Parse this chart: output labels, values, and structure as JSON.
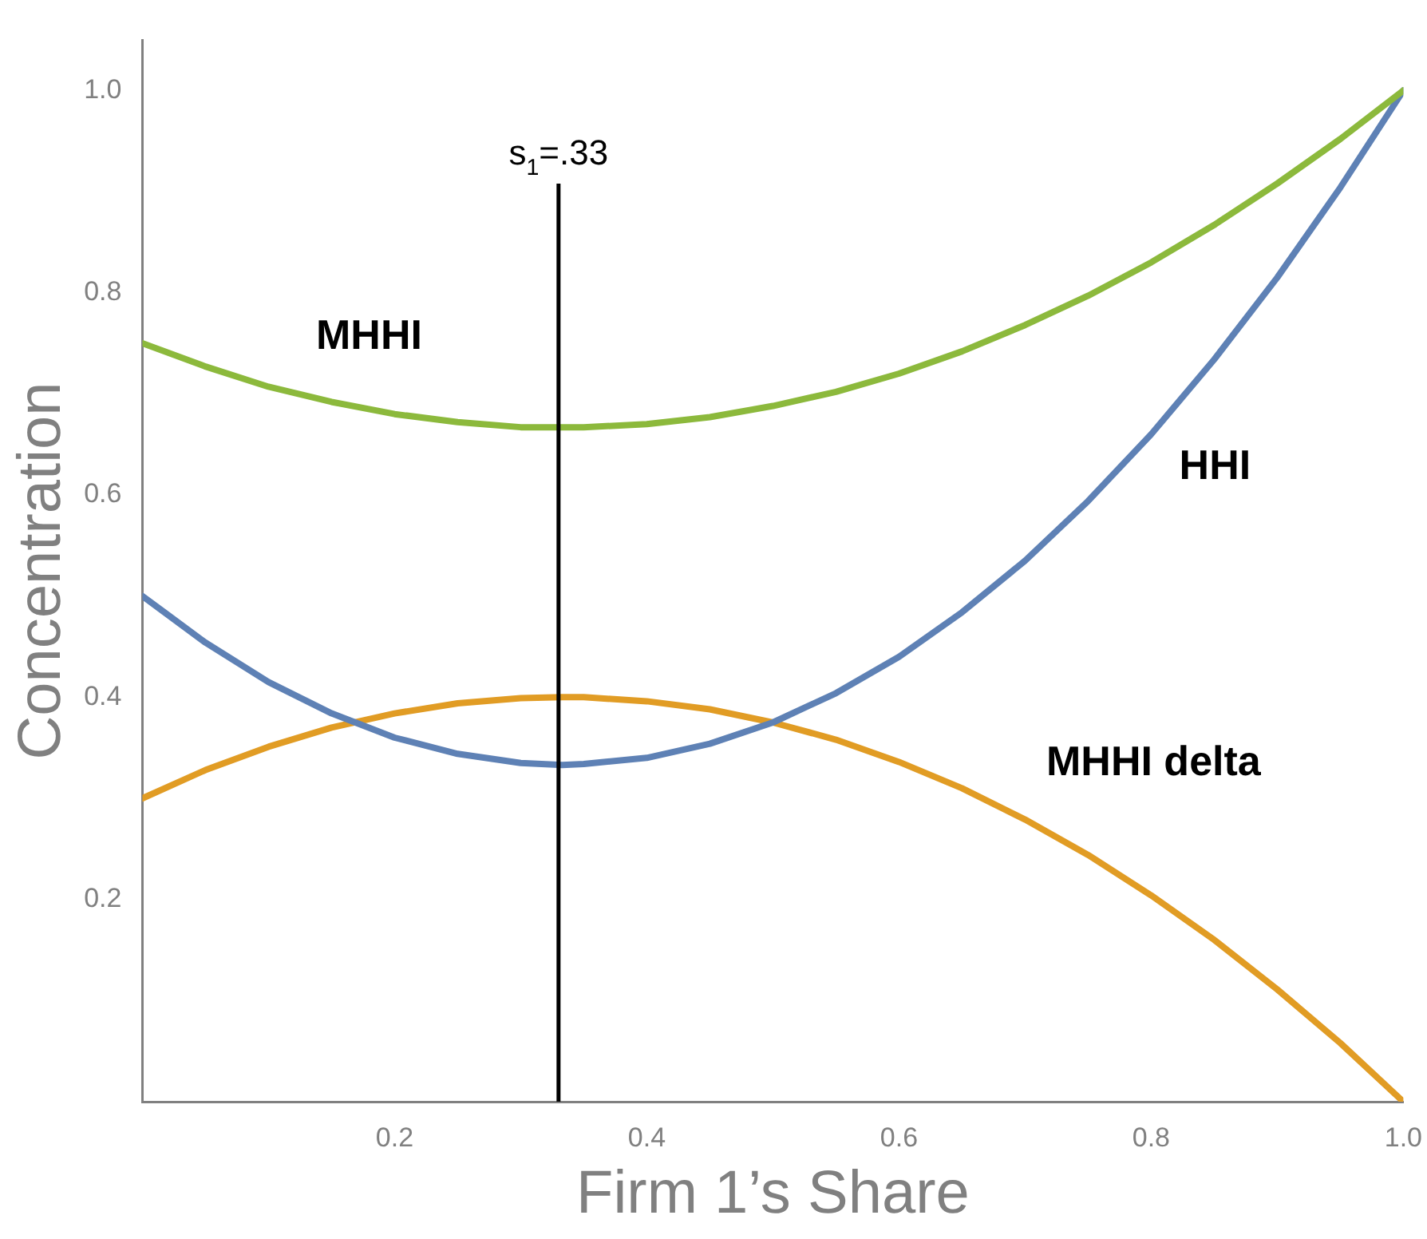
{
  "chart_data": {
    "type": "line",
    "xlabel": "Firm 1’s Share",
    "ylabel": "Concentration",
    "x": [
      0,
      0.05,
      0.1,
      0.15,
      0.2,
      0.25,
      0.3,
      0.333,
      0.35,
      0.4,
      0.45,
      0.5,
      0.55,
      0.6,
      0.65,
      0.7,
      0.75,
      0.8,
      0.85,
      0.9,
      0.95,
      1.0
    ],
    "series": [
      {
        "name": "MHHI",
        "color": "#8cb93c",
        "values": [
          0.75,
          0.727,
          0.707,
          0.692,
          0.68,
          0.672,
          0.667,
          0.667,
          0.667,
          0.67,
          0.677,
          0.688,
          0.702,
          0.72,
          0.742,
          0.768,
          0.797,
          0.83,
          0.867,
          0.908,
          0.952,
          1.0
        ]
      },
      {
        "name": "HHI",
        "color": "#5e81b5",
        "values": [
          0.5,
          0.454,
          0.415,
          0.384,
          0.36,
          0.344,
          0.335,
          0.333,
          0.334,
          0.34,
          0.354,
          0.375,
          0.404,
          0.44,
          0.484,
          0.535,
          0.594,
          0.66,
          0.734,
          0.815,
          0.904,
          1.0
        ]
      },
      {
        "name": "MHHI delta",
        "color": "#e19c24",
        "values": [
          0.3,
          0.328,
          0.351,
          0.37,
          0.384,
          0.394,
          0.399,
          0.4,
          0.4,
          0.396,
          0.388,
          0.375,
          0.358,
          0.336,
          0.31,
          0.279,
          0.244,
          0.204,
          0.16,
          0.111,
          0.058,
          0.0
        ]
      }
    ],
    "xlim": [
      0,
      1.0
    ],
    "ylim": [
      0,
      1.05
    ],
    "xticks": [
      0.2,
      0.4,
      0.6,
      0.8,
      {
        "value": 1.0,
        "label": "1.0"
      }
    ],
    "yticks": [
      0.2,
      0.4,
      0.6,
      0.8,
      {
        "value": 1.0,
        "label": "1.0"
      }
    ],
    "ref_lines": [
      {
        "axis": "x",
        "value": 0.33,
        "label": "s$_{1}$=.33",
        "color": "#000000"
      }
    ],
    "grid": false,
    "legend": false,
    "marker": "none",
    "line_style": "solid"
  }
}
